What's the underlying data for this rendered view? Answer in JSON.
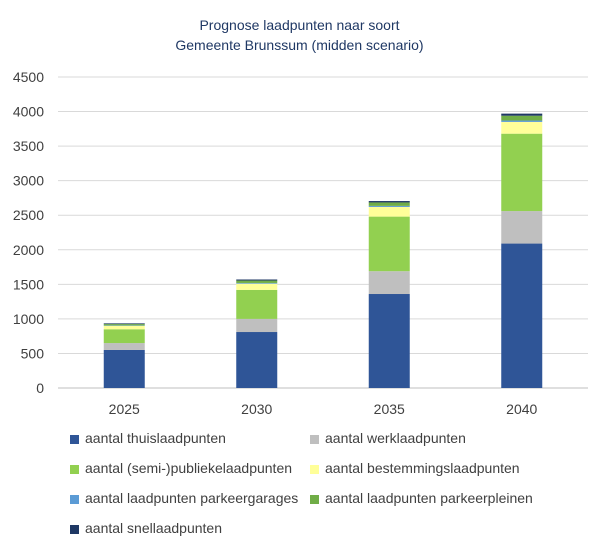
{
  "chart_data": {
    "type": "bar",
    "stacked": true,
    "title": "Prognose laadpunten naar soort",
    "subtitle": "Gemeente Brunssum (midden scenario)",
    "categories": [
      "2025",
      "2030",
      "2035",
      "2040"
    ],
    "ylim": [
      0,
      4500
    ],
    "yticks": [
      0,
      500,
      1000,
      1500,
      2000,
      2500,
      3000,
      3500,
      4000,
      4500
    ],
    "grid": true,
    "legend_position": "bottom",
    "series": [
      {
        "name": "aantal thuislaadpunten",
        "color": "#2f5597",
        "values": [
          550,
          810,
          1360,
          2090
        ]
      },
      {
        "name": "aantal werklaadpunten",
        "color": "#bfbfbf",
        "values": [
          100,
          190,
          330,
          470
        ]
      },
      {
        "name": "aantal (semi-)publiekelaadpunten",
        "color": "#92d050",
        "values": [
          200,
          420,
          790,
          1120
        ]
      },
      {
        "name": "aantal bestemmingslaadpunten",
        "color": "#ffff99",
        "values": [
          50,
          90,
          140,
          170
        ]
      },
      {
        "name": "aantal laadpunten parkeergarages",
        "color": "#5b9bd5",
        "values": [
          5,
          10,
          15,
          20
        ]
      },
      {
        "name": "aantal laadpunten parkeerpleinen",
        "color": "#70ad47",
        "values": [
          20,
          35,
          50,
          70
        ]
      },
      {
        "name": "aantal snellaadpunten",
        "color": "#1f3864",
        "values": [
          10,
          15,
          20,
          30
        ]
      }
    ]
  }
}
